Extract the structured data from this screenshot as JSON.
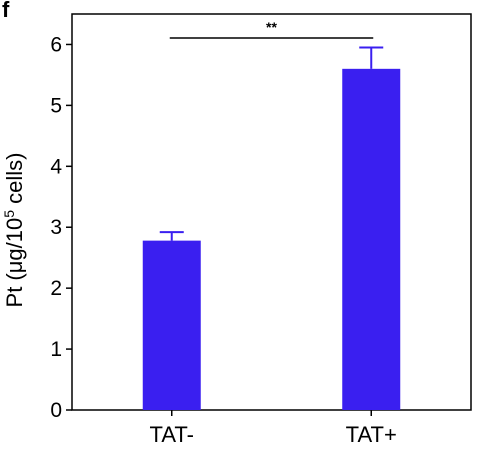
{
  "panel_letter": "f",
  "significance": "**",
  "colors": {
    "bar": "#3a1ff0",
    "axis": "#000000"
  },
  "chart_data": {
    "type": "bar",
    "categories": [
      "TAT-",
      "TAT+"
    ],
    "values": [
      2.78,
      5.6
    ],
    "error": [
      0.14,
      0.35
    ],
    "ylabel": {
      "main": "Pt (μg/10",
      "sup": "5",
      "tail": " cells)"
    },
    "ylim": [
      0,
      6.5
    ],
    "yticks": [
      0,
      1,
      2,
      3,
      4,
      5,
      6
    ],
    "grid": false
  }
}
